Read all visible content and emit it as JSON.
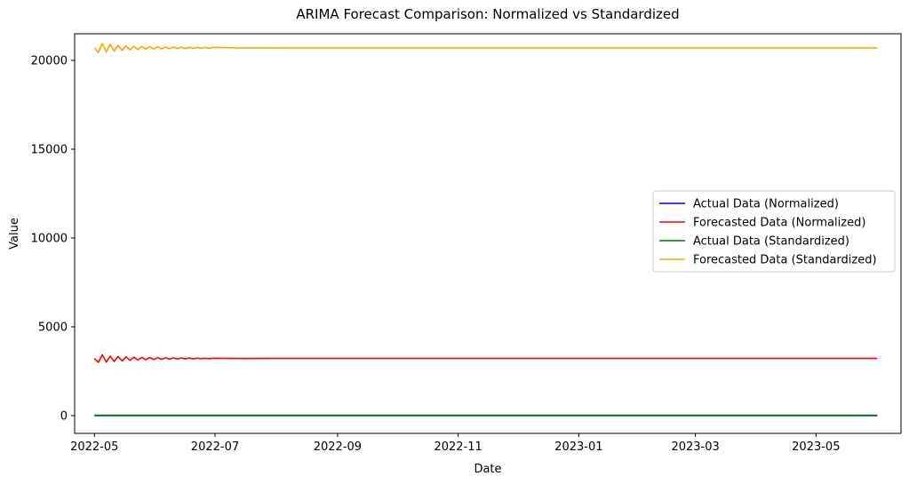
{
  "chart_data": {
    "type": "line",
    "title": "ARIMA Forecast Comparison: Normalized vs Standardized",
    "xlabel": "Date",
    "ylabel": "Value",
    "xlim": [
      "2022-04-21",
      "2023-06-13"
    ],
    "ylim": [
      -1000,
      21500
    ],
    "xticks": [
      "2022-05",
      "2022-07",
      "2022-09",
      "2022-11",
      "2023-01",
      "2023-03",
      "2023-05"
    ],
    "xtick_dates": [
      "2022-05-01",
      "2022-07-01",
      "2022-09-01",
      "2022-11-01",
      "2023-01-01",
      "2023-03-01",
      "2023-05-01"
    ],
    "yticks": [
      0,
      5000,
      10000,
      15000,
      20000
    ],
    "grid": false,
    "legend_position": "center-right",
    "series": [
      {
        "name": "Actual Data (Normalized)",
        "color": "#0000ff",
        "x": [
          "2022-05-01",
          "2023-06-01"
        ],
        "values": [
          0,
          0
        ]
      },
      {
        "name": "Forecasted Data (Normalized)",
        "color": "#ff0000",
        "x": [
          "2022-05-01",
          "2022-05-03",
          "2022-05-05",
          "2022-05-07",
          "2022-05-09",
          "2022-05-11",
          "2022-05-13",
          "2022-05-15",
          "2022-05-17",
          "2022-05-19",
          "2022-05-21",
          "2022-05-23",
          "2022-05-25",
          "2022-05-27",
          "2022-05-29",
          "2022-05-31",
          "2022-06-02",
          "2022-06-04",
          "2022-06-06",
          "2022-06-08",
          "2022-06-10",
          "2022-06-12",
          "2022-06-14",
          "2022-06-16",
          "2022-06-18",
          "2022-06-20",
          "2022-06-22",
          "2022-06-24",
          "2022-06-26",
          "2022-06-28",
          "2022-06-30",
          "2022-07-15",
          "2022-08-01",
          "2023-06-01"
        ],
        "values": [
          3220,
          3000,
          3420,
          3010,
          3350,
          3050,
          3330,
          3080,
          3310,
          3110,
          3290,
          3130,
          3280,
          3150,
          3270,
          3160,
          3260,
          3170,
          3255,
          3180,
          3250,
          3185,
          3245,
          3190,
          3240,
          3195,
          3235,
          3200,
          3232,
          3205,
          3228,
          3215,
          3218,
          3218
        ]
      },
      {
        "name": "Actual Data (Standardized)",
        "color": "#008000",
        "x": [
          "2022-05-01",
          "2023-06-01"
        ],
        "values": [
          20,
          20
        ]
      },
      {
        "name": "Forecasted Data (Standardized)",
        "color": "#ffa500",
        "x": [
          "2022-05-01",
          "2022-05-03",
          "2022-05-05",
          "2022-05-07",
          "2022-05-09",
          "2022-05-11",
          "2022-05-13",
          "2022-05-15",
          "2022-05-17",
          "2022-05-19",
          "2022-05-21",
          "2022-05-23",
          "2022-05-25",
          "2022-05-27",
          "2022-05-29",
          "2022-05-31",
          "2022-06-02",
          "2022-06-04",
          "2022-06-06",
          "2022-06-08",
          "2022-06-10",
          "2022-06-12",
          "2022-06-14",
          "2022-06-16",
          "2022-06-18",
          "2022-06-20",
          "2022-06-22",
          "2022-06-24",
          "2022-06-26",
          "2022-06-28",
          "2022-06-30",
          "2022-07-15",
          "2022-08-01",
          "2023-06-01"
        ],
        "values": [
          20700,
          20450,
          20950,
          20470,
          20900,
          20520,
          20850,
          20560,
          20820,
          20590,
          20800,
          20610,
          20780,
          20630,
          20770,
          20640,
          20760,
          20650,
          20755,
          20660,
          20750,
          20665,
          20745,
          20670,
          20740,
          20675,
          20735,
          20680,
          20732,
          20685,
          20728,
          20700,
          20705,
          20705
        ]
      }
    ]
  }
}
